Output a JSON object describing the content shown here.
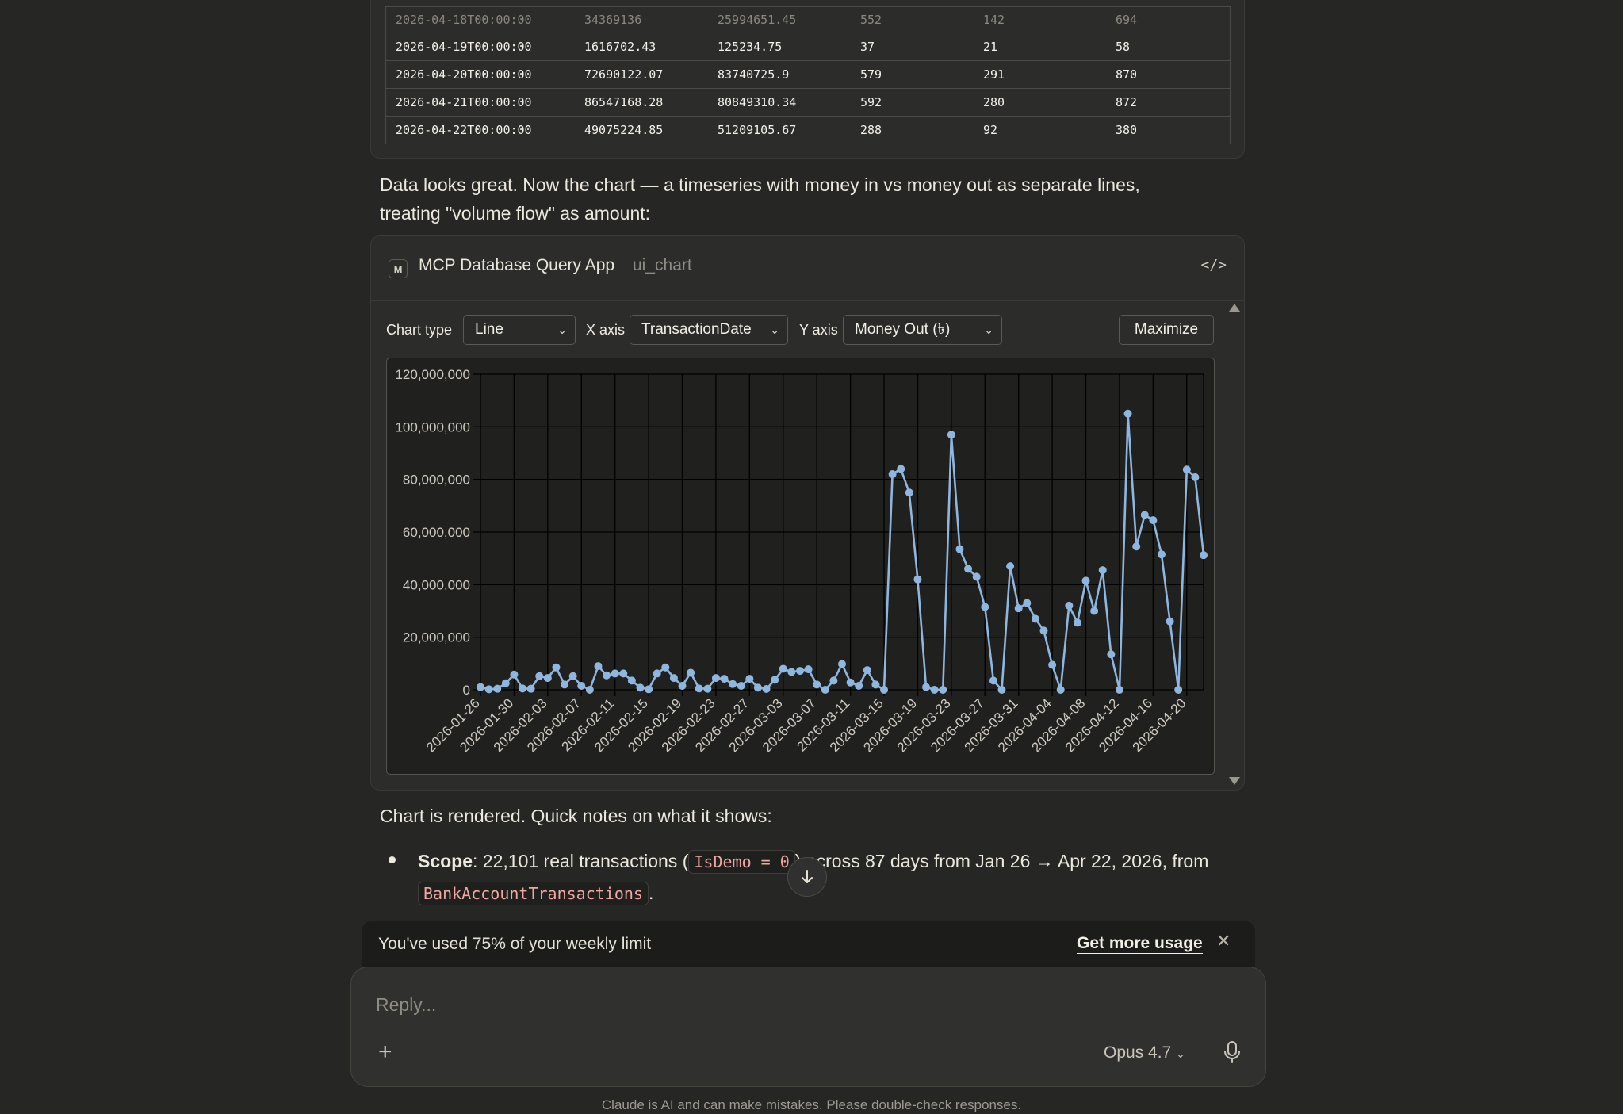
{
  "table": {
    "rows": [
      [
        "2026-04-18T00:00:00",
        "34369136",
        "25994651.45",
        "552",
        "142",
        "694"
      ],
      [
        "2026-04-19T00:00:00",
        "1616702.43",
        "125234.75",
        "37",
        "21",
        "58"
      ],
      [
        "2026-04-20T00:00:00",
        "72690122.07",
        "83740725.9",
        "579",
        "291",
        "870"
      ],
      [
        "2026-04-21T00:00:00",
        "86547168.28",
        "80849310.34",
        "592",
        "280",
        "872"
      ],
      [
        "2026-04-22T00:00:00",
        "49075224.85",
        "51209105.67",
        "288",
        "92",
        "380"
      ]
    ]
  },
  "message1": {
    "line1": "Data looks great. Now the chart — a timeseries with money in vs money out as separate lines,",
    "line2": "treating \"volume flow\" as amount:"
  },
  "tool_card": {
    "badge": "M",
    "app_name": "MCP Database Query App",
    "tool_name": "ui_chart",
    "code_icon": "</>",
    "chart_type_label": "Chart type",
    "chart_type_value": "Line",
    "x_axis_label": "X axis",
    "x_axis_value": "TransactionDate",
    "y_axis_label": "Y axis",
    "y_axis_value": "Money Out (৳)",
    "maximize_label": "Maximize"
  },
  "chart_data": {
    "type": "line",
    "title": "",
    "xlabel": "",
    "ylabel": "",
    "ylim": [
      0,
      120000000
    ],
    "y_ticks": [
      "0",
      "20,000,000",
      "40,000,000",
      "60,000,000",
      "80,000,000",
      "100,000,000",
      "120,000,000"
    ],
    "x_tick_labels": [
      "2026-01-26",
      "2026-01-30",
      "2026-02-03",
      "2026-02-07",
      "2026-02-11",
      "2026-02-15",
      "2026-02-19",
      "2026-02-23",
      "2026-02-27",
      "2026-03-03",
      "2026-03-07",
      "2026-03-11",
      "2026-03-15",
      "2026-03-19",
      "2026-03-23",
      "2026-03-27",
      "2026-03-31",
      "2026-04-04",
      "2026-04-08",
      "2026-04-12",
      "2026-04-16",
      "2026-04-20"
    ],
    "grid": true,
    "x_start": "2026-01-26",
    "x_end": "2026-04-22",
    "series": [
      {
        "color": "#8fb6de",
        "values": [
          1000000,
          200000,
          400000,
          2500000,
          5800000,
          500000,
          400000,
          5200000,
          4500000,
          8500000,
          2000000,
          5200000,
          1500000,
          0,
          9000000,
          5500000,
          6200000,
          6200000,
          3500000,
          800000,
          200000,
          6200000,
          8500000,
          4500000,
          1500000,
          6500000,
          500000,
          400000,
          4500000,
          4200000,
          2200000,
          1500000,
          4200000,
          800000,
          300000,
          3800000,
          8000000,
          6800000,
          7200000,
          7800000,
          2000000,
          0,
          3500000,
          9800000,
          2800000,
          1500000,
          7500000,
          2000000,
          0,
          82000000,
          84000000,
          75000000,
          42000000,
          1000000,
          0,
          0,
          97000000,
          53500000,
          46000000,
          43000000,
          31500000,
          3500000,
          0,
          47000000,
          31000000,
          33000000,
          27000000,
          22500000,
          9500000,
          0,
          32000000,
          25500000,
          41500000,
          30000000,
          45500000,
          13500000,
          0,
          105000000,
          54500000,
          66500000,
          64500000,
          51500000,
          26000000,
          0,
          83740725.9,
          80849310.34,
          51209105.67
        ]
      }
    ]
  },
  "notes": {
    "intro": "Chart is rendered. Quick notes on what it shows:",
    "scope_label": "Scope",
    "scope_text1": ": 22,101 real transactions (",
    "scope_code1": "IsDemo = 0",
    "scope_text2": ") across 87 days from Jan 26 → Apr 22, 2026, from",
    "scope_code2": "BankAccountTransactions",
    "scope_end": "."
  },
  "usage": {
    "text": "You've used 75% of your weekly limit",
    "link": "Get more usage"
  },
  "composer": {
    "placeholder": "Reply...",
    "model": "Opus 4.7"
  },
  "footer": {
    "disclaimer": "Claude is AI and can make mistakes. Please double-check responses."
  }
}
